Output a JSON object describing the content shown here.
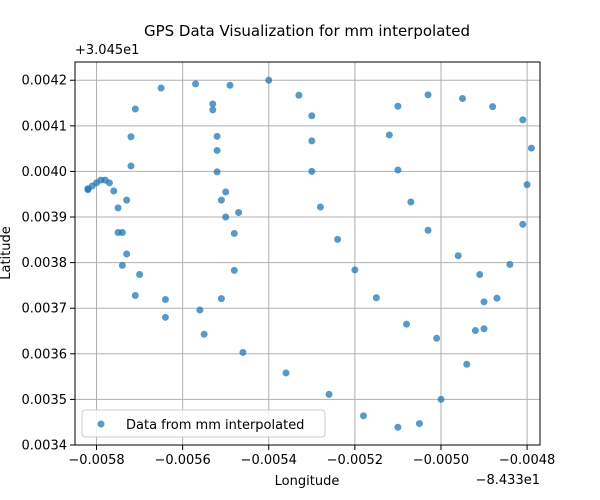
{
  "chart_data": {
    "type": "scatter",
    "title": "GPS Data Visualization for mm interpolated",
    "xlabel": "Longitude",
    "ylabel": "Latitude",
    "x_offset_label": "−8.433e1",
    "y_offset_label": "+3.045e1",
    "xlim": [
      -0.00585,
      -0.00477
    ],
    "ylim": [
      0.0034,
      0.00424
    ],
    "xticks": [
      -0.0058,
      -0.0056,
      -0.0054,
      -0.0052,
      -0.005,
      -0.0048
    ],
    "xtick_labels": [
      "−0.0058",
      "−0.0056",
      "−0.0054",
      "−0.0052",
      "−0.0050",
      "−0.0048"
    ],
    "yticks": [
      0.0034,
      0.0035,
      0.0036,
      0.0037,
      0.0038,
      0.0039,
      0.004,
      0.0041,
      0.0042
    ],
    "ytick_labels": [
      "0.0034",
      "0.0035",
      "0.0036",
      "0.0037",
      "0.0038",
      "0.0039",
      "0.0040",
      "0.0041",
      "0.0042"
    ],
    "grid": true,
    "legend_position": "lower-left",
    "series": [
      {
        "name": "Data from mm interpolated",
        "color": "#1f77b4",
        "points": [
          [
            -0.00582,
            0.00396
          ],
          [
            -0.00582,
            0.003962
          ],
          [
            -0.00581,
            0.003968
          ],
          [
            -0.0058,
            0.003975
          ],
          [
            -0.00579,
            0.003981
          ],
          [
            -0.00578,
            0.003981
          ],
          [
            -0.00577,
            0.003975
          ],
          [
            -0.00576,
            0.003957
          ],
          [
            -0.00575,
            0.00392
          ],
          [
            -0.00575,
            0.003866
          ],
          [
            -0.00574,
            0.003866
          ],
          [
            -0.00574,
            0.003794
          ],
          [
            -0.00573,
            0.003819
          ],
          [
            -0.00573,
            0.003937
          ],
          [
            -0.00572,
            0.004012
          ],
          [
            -0.00572,
            0.004076
          ],
          [
            -0.00571,
            0.004137
          ],
          [
            -0.00571,
            0.003728
          ],
          [
            -0.0057,
            0.003774
          ],
          [
            -0.00565,
            0.004183
          ],
          [
            -0.00564,
            0.003719
          ],
          [
            -0.00564,
            0.00368
          ],
          [
            -0.00557,
            0.004192
          ],
          [
            -0.00556,
            0.003696
          ],
          [
            -0.00555,
            0.003643
          ],
          [
            -0.00553,
            0.004148
          ],
          [
            -0.00553,
            0.004135
          ],
          [
            -0.00552,
            0.004077
          ],
          [
            -0.00552,
            0.004046
          ],
          [
            -0.00552,
            0.003999
          ],
          [
            -0.00551,
            0.003937
          ],
          [
            -0.00551,
            0.003721
          ],
          [
            -0.0055,
            0.003955
          ],
          [
            -0.0055,
            0.0039
          ],
          [
            -0.00549,
            0.004189
          ],
          [
            -0.00548,
            0.003864
          ],
          [
            -0.00548,
            0.003783
          ],
          [
            -0.00547,
            0.00391
          ],
          [
            -0.00546,
            0.003603
          ],
          [
            -0.0054,
            0.0042
          ],
          [
            -0.00536,
            0.003558
          ],
          [
            -0.00533,
            0.004167
          ],
          [
            -0.0053,
            0.004122
          ],
          [
            -0.0053,
            0.004067
          ],
          [
            -0.0053,
            0.004
          ],
          [
            -0.00528,
            0.003922
          ],
          [
            -0.00526,
            0.003511
          ],
          [
            -0.00524,
            0.003851
          ],
          [
            -0.0052,
            0.003784
          ],
          [
            -0.00518,
            0.003464
          ],
          [
            -0.00515,
            0.003723
          ],
          [
            -0.00512,
            0.00408
          ],
          [
            -0.0051,
            0.003439
          ],
          [
            -0.0051,
            0.004003
          ],
          [
            -0.0051,
            0.004143
          ],
          [
            -0.00508,
            0.003665
          ],
          [
            -0.00507,
            0.003933
          ],
          [
            -0.00505,
            0.003447
          ],
          [
            -0.00503,
            0.004168
          ],
          [
            -0.00503,
            0.003871
          ],
          [
            -0.00501,
            0.003634
          ],
          [
            -0.005,
            0.0035
          ],
          [
            -0.00496,
            0.003815
          ],
          [
            -0.00495,
            0.00416
          ],
          [
            -0.00494,
            0.003577
          ],
          [
            -0.00492,
            0.003651
          ],
          [
            -0.00491,
            0.003774
          ],
          [
            -0.0049,
            0.003655
          ],
          [
            -0.0049,
            0.003714
          ],
          [
            -0.00488,
            0.004142
          ],
          [
            -0.00487,
            0.003722
          ],
          [
            -0.00484,
            0.003796
          ],
          [
            -0.00481,
            0.004113
          ],
          [
            -0.00481,
            0.003884
          ],
          [
            -0.0048,
            0.003971
          ],
          [
            -0.00479,
            0.004051
          ]
        ]
      }
    ]
  }
}
